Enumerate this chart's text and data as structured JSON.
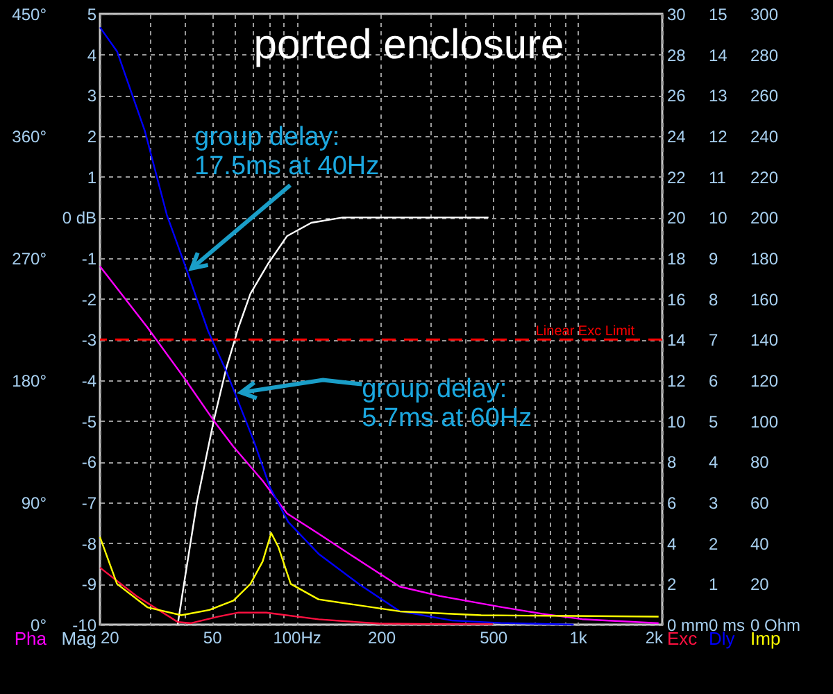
{
  "chart_data": [
    {
      "type": "line",
      "title": "ported enclosure",
      "ylabel": "Mag",
      "y2label": "Pha",
      "y3label": "Exc",
      "log": "x",
      "grid": true,
      "xlim": [
        20,
        2000
      ],
      "xticks": [
        20,
        {
          "value": 30,
          "label": null
        },
        {
          "value": 40,
          "label": null
        },
        50,
        {
          "value": 60,
          "label": null
        },
        {
          "value": 70,
          "label": null
        },
        {
          "value": 80,
          "label": null
        },
        {
          "value": 90,
          "label": null
        },
        {
          "value": 100,
          "label": "100Hz"
        },
        200,
        {
          "value": 300,
          "label": null
        },
        {
          "value": 400,
          "label": null
        },
        500,
        {
          "value": 600,
          "label": null
        },
        {
          "value": 700,
          "label": null
        },
        {
          "value": 800,
          "label": null
        },
        {
          "value": 900,
          "label": null
        },
        {
          "value": 1000,
          "label": "1k"
        },
        {
          "value": 2000,
          "label": "2k"
        }
      ],
      "ylim": [
        -10,
        5
      ],
      "yticks": [
        -10,
        -9,
        -8,
        -7,
        -6,
        -5,
        -4,
        -3,
        -2,
        -1,
        {
          "value": 0,
          "label": "0 dB"
        },
        1,
        2,
        3,
        4,
        5
      ],
      "y2lim": [
        0,
        450
      ],
      "y2ticks": [
        {
          "value": 0,
          "label": "0°"
        },
        {
          "value": 90,
          "label": "90°"
        },
        {
          "value": 180,
          "label": "180°"
        },
        {
          "value": 270,
          "label": "270°"
        },
        {
          "value": 360,
          "label": "360°"
        },
        {
          "value": 450,
          "label": "450°"
        }
      ],
      "y3lim": [
        0,
        30
      ],
      "y3ticks": [
        {
          "value": 0,
          "label": "0 mm"
        },
        2,
        4,
        6,
        8,
        10,
        12,
        14,
        16,
        18,
        20,
        22,
        24,
        26,
        28,
        30
      ],
      "series": [
        {
          "color": "#ffffff",
          "x": [
            37.8,
            39.7,
            44.3,
            50.9,
            56.3,
            62.2,
            68.6,
            79.7,
            92.5,
            112.9,
            146,
            240,
            482
          ],
          "values": [
            -10,
            -9.05,
            -6.98,
            -4.96,
            -3.7,
            -2.7,
            -1.87,
            -1.11,
            -0.46,
            -0.13,
            0,
            0,
            0
          ]
        },
        {
          "axis": "y2",
          "color": "#ff00ff",
          "x": [
            20,
            29.5,
            40.1,
            50.9,
            59.7,
            75.8,
            92.5,
            119.8,
            168,
            233,
            324,
            533,
            747,
            1038,
            1941
          ],
          "values": [
            264,
            219,
            181,
            150,
            131,
            106,
            82,
            67,
            47,
            28,
            21,
            13,
            8,
            4,
            1
          ]
        },
        {
          "axis": "y3",
          "color": "#ff1040",
          "x": [
            20,
            27,
            37.8,
            42.2,
            52.5,
            62.2,
            78.1,
            119.8,
            197,
            300,
            500
          ],
          "values": [
            2.8,
            1.4,
            0.13,
            0.07,
            0.39,
            0.59,
            0.59,
            0.26,
            0.05,
            0.03,
            0.02
          ]
        }
      ],
      "ref_lines": [
        {
          "axis": "y3",
          "value": 14,
          "label": "Linear Exc Limit",
          "color": "#ff0000",
          "line_style": "dashed"
        }
      ]
    },
    {
      "type": "line",
      "ylabel": "Dly",
      "y2label": "Imp",
      "log": "x",
      "tick_labels": "y",
      "xlim": [
        20,
        2000
      ],
      "ylim": [
        0,
        15
      ],
      "yticks": [
        {
          "value": 0,
          "label": "0 ms"
        },
        1,
        2,
        3,
        4,
        5,
        6,
        7,
        8,
        9,
        10,
        11,
        12,
        13,
        14,
        15
      ],
      "y2lim": [
        0,
        300
      ],
      "y2ticks": [
        {
          "value": 0,
          "label": "0 Ohm"
        },
        20,
        40,
        60,
        80,
        100,
        120,
        140,
        160,
        180,
        200,
        220,
        240,
        260,
        280,
        300
      ],
      "series": [
        {
          "color": "#0000ff",
          "x": [
            20,
            23,
            28.9,
            34.6,
            40.5,
            48.5,
            56.3,
            70.7,
            80.5,
            93.5,
            119.8,
            168,
            233,
            358,
            533,
            968
          ],
          "values": [
            14.67,
            14.08,
            12.12,
            10.06,
            8.75,
            7.21,
            6.22,
            4.49,
            3.37,
            2.52,
            1.74,
            0.98,
            0.33,
            0.1,
            0.04,
            0
          ]
        },
        {
          "axis": "y2",
          "color": "#ffff00",
          "x": [
            20,
            23,
            29.5,
            38.9,
            49,
            59.7,
            68.6,
            75.8,
            81.3,
            86.3,
            95.4,
            119.8,
            233,
            454,
            1941
          ],
          "values": [
            43,
            20,
            8.5,
            4.6,
            7.2,
            11.8,
            20,
            31,
            45,
            38,
            20,
            12.4,
            6.5,
            4.6,
            3.9
          ]
        }
      ],
      "annotations": [
        {
          "text": "group delay:\n17.5ms at 40Hz",
          "x": 40.5,
          "y": 8.75
        },
        {
          "text": "group delay:\n5.7ms at 60Hz",
          "x": 60,
          "y": 5.7
        }
      ]
    }
  ]
}
